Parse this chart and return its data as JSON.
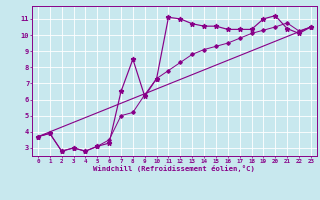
{
  "bg_color": "#c8e8ee",
  "line_color": "#880088",
  "grid_color": "#aacccc",
  "xlabel": "Windchill (Refroidissement éolien,°C)",
  "xlim": [
    -0.5,
    23.5
  ],
  "ylim": [
    2.5,
    11.8
  ],
  "xticks": [
    0,
    1,
    2,
    3,
    4,
    5,
    6,
    7,
    8,
    9,
    10,
    11,
    12,
    13,
    14,
    15,
    16,
    17,
    18,
    19,
    20,
    21,
    22,
    23
  ],
  "yticks": [
    3,
    4,
    5,
    6,
    7,
    8,
    9,
    10,
    11
  ],
  "curve1_x": [
    0,
    1,
    2,
    3,
    4,
    5,
    6,
    7,
    8,
    9,
    10,
    11,
    12,
    13,
    14,
    15,
    16,
    17,
    18,
    19,
    20,
    21,
    22,
    23
  ],
  "curve1_y": [
    3.7,
    3.9,
    2.8,
    3.0,
    2.8,
    3.1,
    3.3,
    6.5,
    8.5,
    6.2,
    7.3,
    11.1,
    11.0,
    10.7,
    10.55,
    10.55,
    10.35,
    10.35,
    10.35,
    11.0,
    11.2,
    10.4,
    10.1,
    10.5
  ],
  "curve2_x": [
    0,
    1,
    2,
    3,
    4,
    5,
    6,
    7,
    8,
    9,
    10,
    11,
    12,
    13,
    14,
    15,
    16,
    17,
    18,
    19,
    20,
    21,
    22,
    23
  ],
  "curve2_y": [
    3.7,
    3.9,
    2.8,
    3.0,
    2.8,
    3.1,
    3.5,
    5.0,
    5.2,
    6.3,
    7.3,
    7.8,
    8.3,
    8.8,
    9.1,
    9.3,
    9.5,
    9.8,
    10.1,
    10.3,
    10.5,
    10.75,
    10.25,
    10.5
  ],
  "line3_x": [
    0,
    23
  ],
  "line3_y": [
    3.7,
    10.5
  ]
}
